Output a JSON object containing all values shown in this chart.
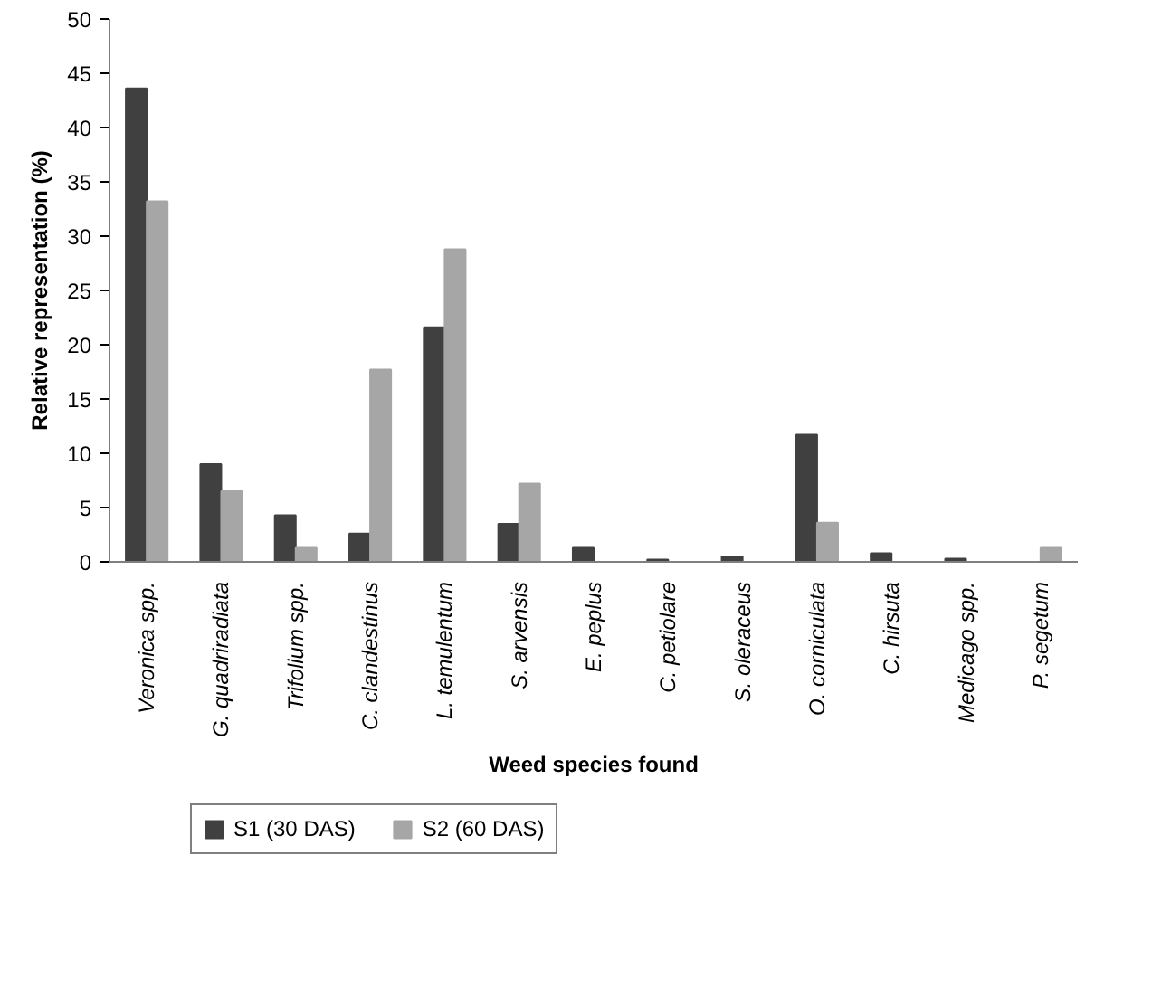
{
  "chart_data": {
    "type": "bar",
    "xlabel": "Weed species found",
    "ylabel": "Relative representation (%)",
    "categories": [
      "Veronica spp.",
      "G. quadriradiata",
      "Trifolium spp.",
      "C. clandestinus",
      "L. temulentum",
      "S. arvensis",
      "E. peplus",
      "C. petiolare",
      "S. oleraceus",
      "O. corniculata",
      "C. hirsuta",
      "Medicago spp.",
      "P. segetum"
    ],
    "series": [
      {
        "name": "S1 (30 DAS)",
        "color": "#404040",
        "values": [
          43.6,
          9.0,
          4.3,
          2.6,
          21.6,
          3.5,
          1.3,
          0.2,
          0.5,
          11.7,
          0.8,
          0.3,
          0
        ]
      },
      {
        "name": "S2 (60 DAS)",
        "color": "#a6a6a6",
        "values": [
          33.2,
          6.5,
          1.3,
          17.7,
          28.8,
          7.2,
          0,
          0,
          0,
          3.6,
          0,
          0,
          1.3
        ]
      }
    ],
    "ylim": [
      0,
      50
    ],
    "yticks": [
      0,
      5,
      10,
      15,
      20,
      25,
      30,
      35,
      40,
      45,
      50
    ],
    "grid": false,
    "legend": "bottom left"
  }
}
